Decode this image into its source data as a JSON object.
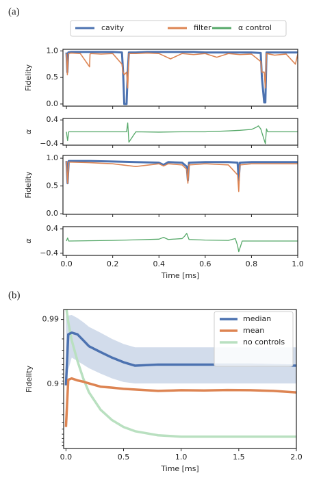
{
  "chart_data": [
    {
      "type": "line",
      "label": "(a)",
      "ylabel": "Fidelity",
      "legend": "top",
      "tick_labels_x": false,
      "x": [
        0,
        0.004,
        0.008,
        0.02,
        0.06,
        0.1,
        0.102,
        0.105,
        0.15,
        0.2,
        0.24,
        0.245,
        0.25,
        0.26,
        0.265,
        0.27,
        0.3,
        0.35,
        0.4,
        0.45,
        0.5,
        0.55,
        0.6,
        0.65,
        0.7,
        0.75,
        0.8,
        0.84,
        0.845,
        0.855,
        0.86,
        0.865,
        0.9,
        0.95,
        0.99,
        1.0
      ],
      "series": [
        {
          "name": "cavity",
          "color": "#4c72b0",
          "values": [
            0.97,
            0.6,
            0.97,
            0.98,
            0.98,
            0.98,
            0.98,
            0.98,
            0.98,
            0.98,
            0.97,
            0.6,
            0.0,
            0.0,
            0.6,
            0.97,
            0.97,
            0.98,
            0.98,
            0.98,
            0.98,
            0.98,
            0.97,
            0.97,
            0.97,
            0.97,
            0.97,
            0.96,
            0.5,
            0.03,
            0.03,
            0.97,
            0.97,
            0.97,
            0.97,
            0.97
          ]
        },
        {
          "name": "filter",
          "color": "#dd8452",
          "values": [
            0.95,
            0.55,
            0.95,
            0.96,
            0.95,
            0.7,
            0.94,
            0.95,
            0.94,
            0.95,
            0.75,
            0.6,
            0.55,
            0.6,
            0.3,
            0.95,
            0.95,
            0.96,
            0.95,
            0.85,
            0.95,
            0.93,
            0.95,
            0.88,
            0.95,
            0.93,
            0.94,
            0.8,
            0.6,
            0.6,
            0.3,
            0.95,
            0.92,
            0.94,
            0.75,
            0.94
          ]
        }
      ],
      "xlim": [
        -0.015,
        1.0
      ],
      "ylim": [
        -0.04,
        1.03
      ],
      "xticks": [
        0,
        0.2,
        0.4,
        0.6,
        0.8,
        1
      ],
      "yticks": [
        {
          "value": 0,
          "label": "0.0"
        },
        0.5,
        {
          "value": 1,
          "label": "1.0"
        }
      ]
    },
    {
      "type": "line",
      "ylabel": "α",
      "tick_labels_x": false,
      "x": [
        0,
        0.005,
        0.01,
        0.1,
        0.2,
        0.26,
        0.265,
        0.27,
        0.3,
        0.4,
        0.5,
        0.6,
        0.7,
        0.75,
        0.8,
        0.82,
        0.83,
        0.84,
        0.86,
        0.865,
        0.87,
        0.9,
        1.0
      ],
      "series": [
        {
          "name": "α control",
          "color": "#55a868",
          "values": [
            0,
            -0.3,
            0,
            0,
            0,
            0,
            0.3,
            -0.35,
            0,
            -0.01,
            0,
            0,
            0.03,
            0.05,
            0.08,
            0.15,
            0.2,
            0.1,
            -0.4,
            0.1,
            0,
            0,
            0
          ]
        }
      ],
      "xlim": [
        -0.015,
        1.0
      ],
      "ylim": [
        -0.45,
        0.45
      ],
      "xticks": [
        0,
        0.2,
        0.4,
        0.6,
        0.8,
        1
      ],
      "yticks": [
        {
          "value": -0.4,
          "label": "−0.4"
        },
        0.4
      ]
    },
    {
      "type": "line",
      "ylabel": "Fidelity",
      "tick_labels_x": false,
      "x": [
        0,
        0.005,
        0.01,
        0.1,
        0.2,
        0.3,
        0.4,
        0.42,
        0.44,
        0.5,
        0.52,
        0.525,
        0.53,
        0.6,
        0.7,
        0.74,
        0.745,
        0.75,
        0.8,
        0.9,
        1.0
      ],
      "series": [
        {
          "color": "#4c72b0",
          "values": [
            0.95,
            0.55,
            0.95,
            0.95,
            0.94,
            0.93,
            0.92,
            0.88,
            0.93,
            0.92,
            0.85,
            0.6,
            0.92,
            0.93,
            0.93,
            0.92,
            0.6,
            0.92,
            0.93,
            0.93,
            0.93
          ]
        },
        {
          "color": "#dd8452",
          "values": [
            0.95,
            0.55,
            0.93,
            0.92,
            0.9,
            0.85,
            0.9,
            0.86,
            0.9,
            0.88,
            0.8,
            0.55,
            0.88,
            0.9,
            0.88,
            0.7,
            0.4,
            0.88,
            0.9,
            0.9,
            0.9
          ]
        }
      ],
      "xlim": [
        -0.015,
        1.0
      ],
      "ylim": [
        -0.01,
        1.05
      ],
      "xticks": [
        0,
        0.2,
        0.4,
        0.6,
        0.8,
        1
      ],
      "yticks": [
        {
          "value": 0,
          "label": "0.0"
        },
        0.5,
        {
          "value": 1,
          "label": "1.0"
        }
      ]
    },
    {
      "type": "line",
      "ylabel": "α",
      "xlabel": "Time [ms]",
      "x": [
        0,
        0.005,
        0.01,
        0.2,
        0.3,
        0.4,
        0.42,
        0.44,
        0.5,
        0.51,
        0.52,
        0.53,
        0.6,
        0.7,
        0.73,
        0.74,
        0.745,
        0.76,
        0.8,
        1.0
      ],
      "series": [
        {
          "color": "#55a868",
          "values": [
            0,
            0.1,
            0,
            0.02,
            0.04,
            0.06,
            0.12,
            0.05,
            0.08,
            0.15,
            0.25,
            0.05,
            0.03,
            0.02,
            0.08,
            -0.15,
            -0.35,
            0,
            0,
            0
          ]
        }
      ],
      "xlim": [
        -0.015,
        1.0
      ],
      "ylim": [
        -0.47,
        0.47
      ],
      "xticks": [
        {
          "value": 0,
          "label": "0.0"
        },
        0.2,
        0.4,
        0.6,
        0.8,
        {
          "value": 1,
          "label": "1.0"
        }
      ],
      "yticks": [
        {
          "value": -0.4,
          "label": "−0.4"
        },
        0.4
      ]
    },
    {
      "type": "line",
      "label": "(b)",
      "ylabel": "Fidelity",
      "xlabel": "Time [ms]",
      "legend": "upper right",
      "yscale": "log_infidelity",
      "x": [
        0,
        0.02,
        0.05,
        0.1,
        0.15,
        0.2,
        0.3,
        0.4,
        0.5,
        0.6,
        0.8,
        1.0,
        1.2,
        1.4,
        1.6,
        1.8,
        2.0
      ],
      "series": [
        {
          "name": "median",
          "color": "#4c72b0",
          "values": [
            0.895,
            0.983,
            0.984,
            0.983,
            0.979,
            0.974,
            0.968,
            0.961,
            0.954,
            0.948,
            0.95,
            0.95,
            0.95,
            0.95,
            0.95,
            0.949,
            0.948
          ],
          "band_high": [
            0.9912,
            0.9913,
            0.9915,
            0.9905,
            0.989,
            0.987,
            0.984,
            0.98,
            0.976,
            0.973,
            0.973,
            0.973,
            0.973,
            0.973,
            0.973,
            0.973,
            0.973
          ],
          "band_low": [
            0.9,
            0.94,
            0.961,
            0.956,
            0.95,
            0.943,
            0.931,
            0.918,
            0.907,
            0.902,
            0.902,
            0.902,
            0.902,
            0.902,
            0.902,
            0.902,
            0.902
          ]
        },
        {
          "name": "mean",
          "color": "#dd8452",
          "values": [
            0.536,
            0.914,
            0.918,
            0.912,
            0.908,
            0.902,
            0.89,
            0.886,
            0.881,
            0.878,
            0.872,
            0.875,
            0.874,
            0.876,
            0.875,
            0.872,
            0.865
          ]
        },
        {
          "name": "no controls",
          "color": "#b9e0c0",
          "values": [
            0.994,
            0.989,
            0.979,
            0.956,
            0.918,
            0.865,
            0.75,
            0.637,
            0.536,
            0.46,
            0.375,
            0.344,
            0.344,
            0.344,
            0.344,
            0.344,
            0.344
          ]
        }
      ],
      "xlim": [
        -0.02,
        2.0
      ],
      "ylim": [
        0,
        0.993
      ],
      "xticks": [
        {
          "value": 0,
          "label": "0.0"
        },
        0.5,
        {
          "value": 1,
          "label": "1.0"
        },
        1.5,
        {
          "value": 2,
          "label": "2.0"
        }
      ],
      "yticks": [
        0.9,
        0.99
      ],
      "yminorticks": [
        0.98,
        0.97,
        0.96,
        0.95,
        0.94,
        0.93,
        0.92,
        0.91,
        0.8,
        0.7,
        0.6,
        0.5,
        0.4,
        0.3,
        0.2,
        0.1
      ]
    }
  ]
}
